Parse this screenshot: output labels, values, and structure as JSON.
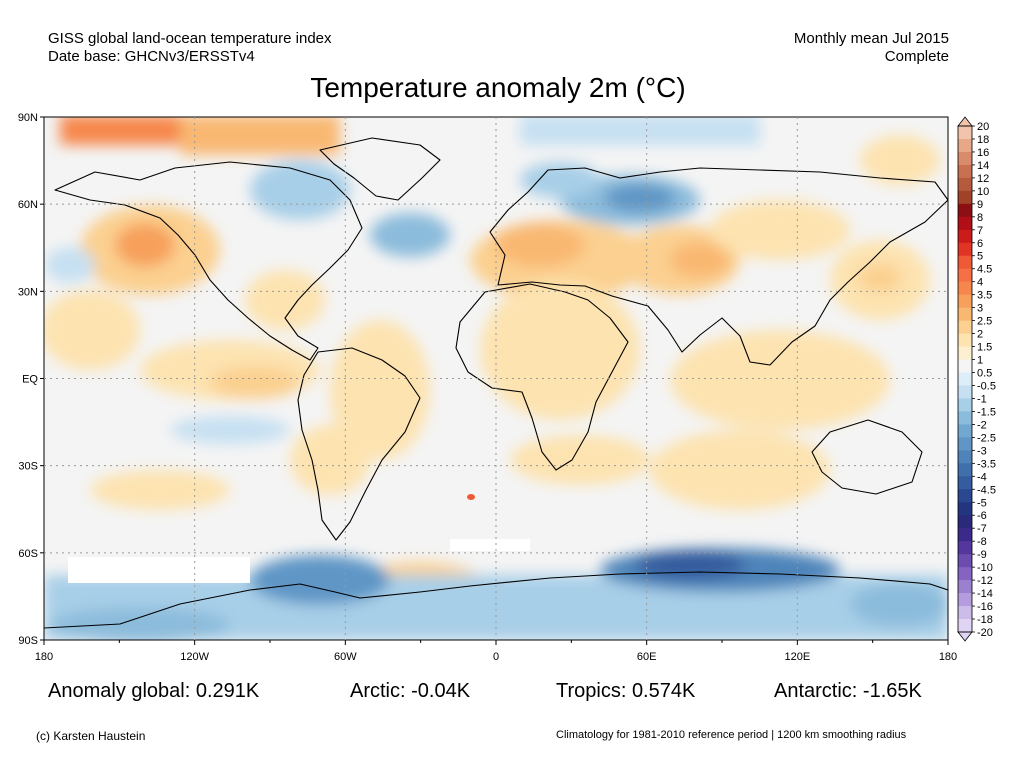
{
  "header": {
    "source_line1": "GISS global land-ocean temperature index",
    "source_line2": "Date base: GHCNv3/ERSSTv4",
    "period_line1": "Monthly mean Jul 2015",
    "period_line2": "Complete"
  },
  "title": "Temperature anomaly 2m (°C)",
  "axes": {
    "lat_labels": [
      "90N",
      "60N",
      "30N",
      "EQ",
      "30S",
      "60S",
      "90S"
    ],
    "lon_labels": [
      "180",
      "120W",
      "60W",
      "0",
      "60E",
      "120E",
      "180"
    ]
  },
  "colorbar": {
    "labels": [
      "20",
      "18",
      "16",
      "14",
      "12",
      "10",
      "9",
      "8",
      "7",
      "6",
      "5",
      "4.5",
      "4",
      "3.5",
      "3",
      "2.5",
      "2",
      "1.5",
      "1",
      "0.5",
      "-0.5",
      "-1",
      "-1.5",
      "-2",
      "-2.5",
      "-3",
      "-3.5",
      "-4",
      "-4.5",
      "-5",
      "-6",
      "-7",
      "-8",
      "-9",
      "-10",
      "-12",
      "-14",
      "-16",
      "-18",
      "-20"
    ],
    "colors": [
      "#f2c4ab",
      "#e8a888",
      "#d98c6c",
      "#c87050",
      "#b55a3c",
      "#a04228",
      "#8c0f14",
      "#b00f17",
      "#cc1b1b",
      "#e03524",
      "#ef5a36",
      "#f57045",
      "#f6874c",
      "#f7a05c",
      "#f9b872",
      "#fbd090",
      "#fde3b0",
      "#fdf0d0",
      "#f5f5f5",
      "#ddeef8",
      "#c6e0f2",
      "#a8cfe8",
      "#8cbcdc",
      "#71a8d0",
      "#5f96c6",
      "#4e84ba",
      "#3f70ac",
      "#345c9e",
      "#2a488f",
      "#23357e",
      "#2a2a7a",
      "#3c2a8a",
      "#54369c",
      "#6c4cae",
      "#8464c0",
      "#9c80d0",
      "#b49cde",
      "#ccbcea",
      "#e0d4f4"
    ]
  },
  "stats": {
    "global": "Anomaly global: 0.291K",
    "arctic": "Arctic: -0.04K",
    "tropics": "Tropics: 0.574K",
    "antarctic": "Antarctic: -1.65K"
  },
  "footer": {
    "credit": "(c) Karsten Haustein",
    "note": "Climatology for 1981-2010 reference period | 1200 km smoothing radius"
  }
}
